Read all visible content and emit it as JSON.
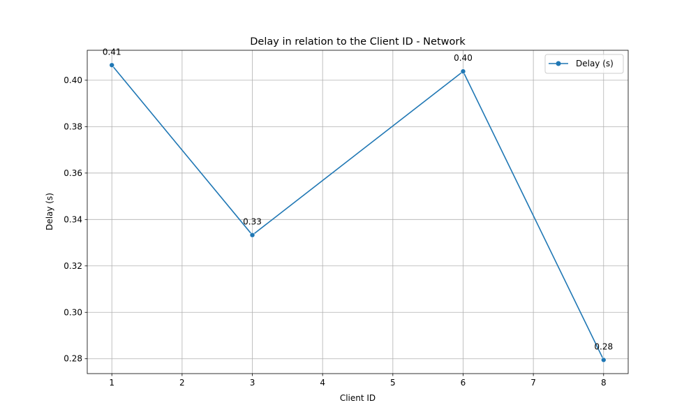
{
  "chart_data": {
    "type": "line",
    "title": "Delay in relation to the Client ID - Network",
    "xlabel": "Client ID",
    "ylabel": "Delay (s)",
    "x": [
      1,
      3,
      6,
      8
    ],
    "series": [
      {
        "name": "Delay (s)",
        "values": [
          0.4065,
          0.3333,
          0.4038,
          0.2795
        ],
        "labels": [
          "0.41",
          "0.33",
          "0.40",
          "0.28"
        ],
        "color": "#1f77b4"
      }
    ],
    "xlim": [
      0.65,
      8.35
    ],
    "ylim": [
      0.2736,
      0.4129
    ],
    "x_ticks": [
      1,
      2,
      3,
      4,
      5,
      6,
      7,
      8
    ],
    "x_tick_labels": [
      "1",
      "2",
      "3",
      "4",
      "5",
      "6",
      "7",
      "8"
    ],
    "y_ticks": [
      0.28,
      0.3,
      0.32,
      0.34,
      0.36,
      0.38,
      0.4
    ],
    "y_tick_labels": [
      "0.28",
      "0.30",
      "0.32",
      "0.34",
      "0.36",
      "0.38",
      "0.40"
    ],
    "grid": true,
    "legend_position": "top-right",
    "marker": "circle"
  }
}
